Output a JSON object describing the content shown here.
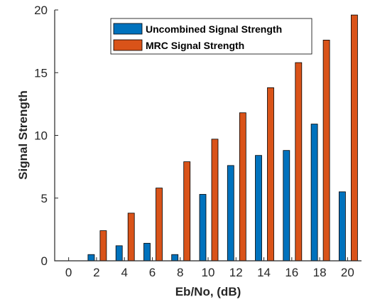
{
  "chart_data": {
    "type": "bar",
    "categories": [
      "0",
      "2",
      "4",
      "6",
      "8",
      "10",
      "12",
      "14",
      "16",
      "18",
      "20"
    ],
    "x": [
      0,
      2,
      4,
      6,
      8,
      10,
      12,
      14,
      16,
      18,
      20
    ],
    "series": [
      {
        "name": "Uncombined Signal Strength",
        "color": "#0072BD",
        "values": [
          0,
          0.5,
          1.2,
          1.4,
          0.5,
          5.3,
          7.6,
          8.4,
          8.8,
          10.9,
          5.5
        ]
      },
      {
        "name": "MRC Signal Strength",
        "color": "#D95319",
        "values": [
          0,
          2.4,
          3.8,
          5.8,
          7.9,
          9.7,
          11.8,
          13.8,
          15.8,
          17.6,
          19.6
        ]
      }
    ],
    "xlabel": "Eb/No, (dB)",
    "ylabel": "Signal Strength",
    "xlim": [
      -1,
      21
    ],
    "ylim": [
      0,
      20
    ],
    "yticks": [
      0,
      5,
      10,
      15,
      20
    ],
    "xticks": [
      0,
      2,
      4,
      6,
      8,
      10,
      12,
      14,
      16,
      18,
      20
    ],
    "grid": false,
    "legend_position": "top-right"
  }
}
